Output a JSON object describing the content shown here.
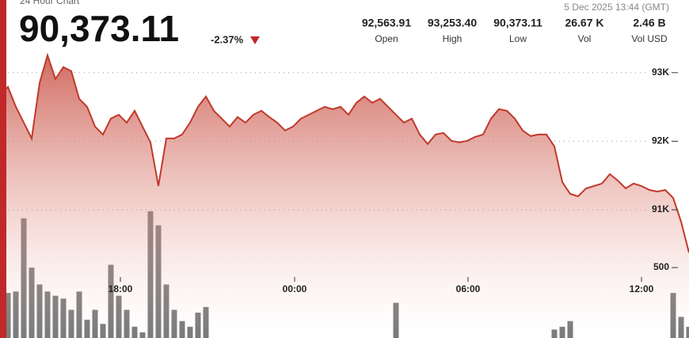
{
  "header": {
    "title": "24 Hour Chart",
    "price": "90,373.11",
    "change": "-2.37%",
    "timestamp": "5 Dec 2025 13:44 (GMT)",
    "stats": [
      {
        "value": "92,563.91",
        "label": "Open"
      },
      {
        "value": "93,253.40",
        "label": "High"
      },
      {
        "value": "90,373.11",
        "label": "Low"
      },
      {
        "value": "26.67 K",
        "label": "Vol"
      },
      {
        "value": "2.46 B",
        "label": "Vol USD"
      }
    ]
  },
  "chart_data": {
    "type": "area",
    "grid": true,
    "xlim": [
      0,
      87
    ],
    "xticks": [
      {
        "value": 15.2,
        "label": "18:00"
      },
      {
        "value": 37.2,
        "label": "00:00"
      },
      {
        "value": 59.1,
        "label": "06:00"
      },
      {
        "value": 81,
        "label": "12:00"
      }
    ],
    "ylim": [
      89130,
      94060
    ],
    "yticks": [
      {
        "value": 91000,
        "label": "91K"
      },
      {
        "value": 92000,
        "label": "92K"
      },
      {
        "value": 93000,
        "label": "93K"
      }
    ],
    "y2lim": [
      0,
      2400
    ],
    "y2ticks": [
      500
    ],
    "series": [
      {
        "color": "#c0392b",
        "values": [
          92653,
          92792,
          92503,
          92272,
          92041,
          92850,
          93253,
          92908,
          93081,
          93023,
          92619,
          92503,
          92214,
          92098,
          92330,
          92387,
          92272,
          92445,
          92214,
          91983,
          91347,
          92041,
          92041,
          92098,
          92272,
          92503,
          92653,
          92445,
          92330,
          92214,
          92353,
          92272,
          92387,
          92445,
          92353,
          92272,
          92156,
          92214,
          92330,
          92387,
          92445,
          92503,
          92468,
          92503,
          92387,
          92561,
          92653,
          92561,
          92619,
          92503,
          92387,
          92272,
          92330,
          92098,
          91960,
          92098,
          92121,
          92006,
          91983,
          92006,
          92064,
          92098,
          92330,
          92468,
          92445,
          92330,
          92156,
          92075,
          92098,
          92098,
          91925,
          91405,
          91231,
          91197,
          91312,
          91347,
          91382,
          91520,
          91428,
          91312,
          91382,
          91347,
          91289,
          91266,
          91289,
          91174,
          90827,
          90373
        ]
      },
      {
        "type": "bar",
        "axis": "y2",
        "color": "#5a5a5a",
        "values": [
          320,
          320,
          330,
          850,
          500,
          380,
          330,
          300,
          280,
          200,
          330,
          130,
          200,
          100,
          520,
          300,
          200,
          80,
          40,
          900,
          800,
          380,
          200,
          120,
          80,
          180,
          220,
          null,
          null,
          null,
          null,
          null,
          null,
          null,
          null,
          null,
          null,
          null,
          null,
          null,
          null,
          null,
          null,
          null,
          null,
          null,
          null,
          null,
          null,
          null,
          250,
          null,
          null,
          null,
          null,
          null,
          null,
          null,
          null,
          null,
          null,
          null,
          null,
          null,
          null,
          null,
          null,
          null,
          null,
          null,
          60,
          80,
          120,
          null,
          null,
          null,
          null,
          null,
          null,
          null,
          null,
          null,
          null,
          null,
          null,
          320,
          150,
          80
        ]
      }
    ]
  }
}
